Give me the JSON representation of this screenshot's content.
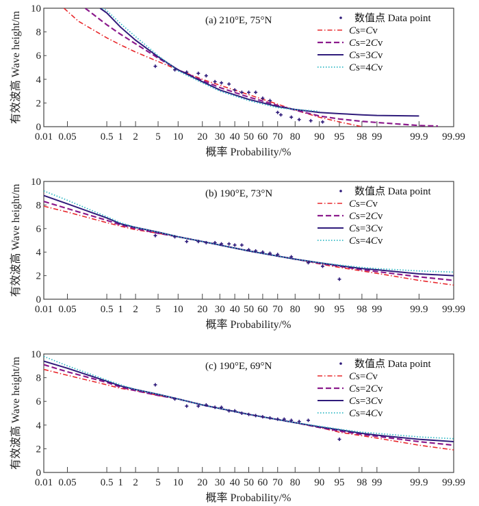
{
  "chart_data": [
    {
      "type": "line",
      "title": "(a) 210°E, 75°N",
      "xlabel": "概率 Probability/%",
      "ylabel": "有效波高 Wave height/m",
      "xscale": "normal-probability",
      "x_ticks": [
        0.01,
        0.05,
        0.5,
        1,
        2,
        5,
        10,
        20,
        30,
        40,
        50,
        60,
        70,
        80,
        90,
        95,
        98,
        99,
        99.9,
        99.99
      ],
      "x_tick_labels": [
        "0.01",
        "0.05",
        "0.5",
        "1",
        "2",
        "5",
        "10",
        "20",
        "30",
        "40",
        "50",
        "60",
        "70",
        "80",
        "90",
        "95",
        "98",
        "99",
        "99.9",
        "99.99"
      ],
      "y_ticks": [
        0,
        2,
        4,
        6,
        8,
        10
      ],
      "ylim": [
        0,
        10
      ],
      "xlim": [
        0.01,
        99.99
      ],
      "legend_position": "top-right",
      "legend": [
        "数值点 Data point",
        "Cs=Cv",
        "Cs=2Cv",
        "Cs=3Cv",
        "Cs=4Cv"
      ],
      "points": {
        "name": "数值点 Data point",
        "x": [
          4.5,
          9,
          13,
          18,
          22,
          27,
          31,
          36,
          40,
          45,
          50,
          55,
          60,
          65,
          70,
          72,
          78,
          82,
          87,
          91
        ],
        "y": [
          5.1,
          4.8,
          4.6,
          4.5,
          4.3,
          3.8,
          3.7,
          3.6,
          3.1,
          2.9,
          2.9,
          2.9,
          2.4,
          2.2,
          1.2,
          1.0,
          0.8,
          0.6,
          0.5,
          0.4
        ]
      },
      "series": [
        {
          "name": "Cs=Cv",
          "style": "dash-dot",
          "color": "#e8262a",
          "x": [
            0.04,
            0.1,
            0.5,
            1,
            2,
            5,
            10,
            20,
            30,
            50,
            70,
            80,
            90,
            95,
            98
          ],
          "y": [
            10,
            8.9,
            7.5,
            6.9,
            6.3,
            5.5,
            4.8,
            4.0,
            3.5,
            2.7,
            1.9,
            1.4,
            0.8,
            0.4,
            0
          ]
        },
        {
          "name": "Cs=2Cv",
          "style": "dashed",
          "color": "#8b1a8c",
          "x": [
            0.15,
            0.5,
            1,
            2,
            5,
            10,
            20,
            30,
            50,
            70,
            80,
            90,
            95,
            98,
            99,
            99.9,
            99.97
          ],
          "y": [
            10,
            8.6,
            7.8,
            7.0,
            5.8,
            4.8,
            3.9,
            3.3,
            2.5,
            1.8,
            1.4,
            0.9,
            0.65,
            0.45,
            0.35,
            0.1,
            0.05
          ]
        },
        {
          "name": "Cs=3Cv",
          "style": "solid",
          "color": "#2e1a7a",
          "x": [
            0.35,
            0.5,
            1,
            2,
            5,
            10,
            20,
            30,
            50,
            70,
            80,
            90,
            95,
            98,
            99,
            99.9
          ],
          "y": [
            10,
            9.6,
            8.4,
            7.3,
            5.9,
            4.8,
            3.8,
            3.1,
            2.3,
            1.7,
            1.45,
            1.2,
            1.1,
            1.0,
            0.95,
            0.9
          ]
        },
        {
          "name": "Cs=4Cv",
          "style": "dotted",
          "color": "#2fb8c4",
          "x": [
            0.4,
            0.5,
            1,
            2,
            5,
            10,
            20,
            30,
            50,
            70,
            80,
            90
          ],
          "y": [
            10,
            9.8,
            8.7,
            7.6,
            6.0,
            4.7,
            3.7,
            3.0,
            2.2,
            1.6,
            1.45,
            1.3
          ]
        }
      ]
    },
    {
      "type": "line",
      "title": "(b) 190°E, 73°N",
      "xlabel": "概率 Probability/%",
      "ylabel": "有效波高 Wave height/m",
      "xscale": "normal-probability",
      "x_ticks": [
        0.01,
        0.05,
        0.5,
        1,
        2,
        5,
        10,
        20,
        30,
        40,
        50,
        60,
        70,
        80,
        90,
        95,
        98,
        99,
        99.9,
        99.99
      ],
      "x_tick_labels": [
        "0.01",
        "0.05",
        "0.5",
        "1",
        "2",
        "5",
        "10",
        "20",
        "30",
        "40",
        "50",
        "60",
        "70",
        "80",
        "90",
        "95",
        "98",
        "99",
        "99.9",
        "99.99"
      ],
      "y_ticks": [
        0,
        2,
        4,
        6,
        8,
        10
      ],
      "ylim": [
        0,
        10
      ],
      "xlim": [
        0.01,
        99.99
      ],
      "legend_position": "top-right",
      "legend": [
        "数值点 Data point",
        "Cs=Cv",
        "Cs=2Cv",
        "Cs=3Cv",
        "Cs=4Cv"
      ],
      "points": {
        "name": "数值点 Data point",
        "x": [
          4.5,
          9,
          13,
          18,
          22,
          27,
          31,
          36,
          40,
          45,
          50,
          55,
          60,
          65,
          70,
          78,
          86,
          91,
          95
        ],
        "y": [
          5.4,
          5.3,
          4.9,
          4.9,
          4.8,
          4.8,
          4.7,
          4.7,
          4.6,
          4.6,
          4.2,
          4.1,
          4.0,
          3.9,
          3.8,
          3.6,
          3.1,
          2.8,
          1.7
        ]
      },
      "series": [
        {
          "name": "Cs=Cv",
          "style": "dash-dot",
          "color": "#e8262a",
          "x": [
            0.01,
            0.05,
            0.5,
            1,
            2,
            5,
            10,
            20,
            50,
            80,
            90,
            95,
            98,
            99,
            99.9,
            99.99
          ],
          "y": [
            7.9,
            7.4,
            6.5,
            6.2,
            5.9,
            5.6,
            5.3,
            4.9,
            4.1,
            3.4,
            3.0,
            2.7,
            2.4,
            2.2,
            1.6,
            1.2
          ]
        },
        {
          "name": "Cs=2Cv",
          "style": "dashed",
          "color": "#8b1a8c",
          "x": [
            0.01,
            0.05,
            0.5,
            1,
            2,
            5,
            10,
            20,
            50,
            80,
            90,
            95,
            98,
            99,
            99.9,
            99.99
          ],
          "y": [
            8.3,
            7.7,
            6.7,
            6.3,
            6.0,
            5.6,
            5.3,
            4.9,
            4.1,
            3.4,
            3.05,
            2.8,
            2.5,
            2.35,
            1.9,
            1.6
          ]
        },
        {
          "name": "Cs=3Cv",
          "style": "solid",
          "color": "#2e1a7a",
          "x": [
            0.01,
            0.05,
            0.5,
            1,
            2,
            5,
            10,
            20,
            50,
            80,
            90,
            95,
            98,
            99,
            99.9,
            99.99
          ],
          "y": [
            8.8,
            8.1,
            6.9,
            6.4,
            6.1,
            5.7,
            5.3,
            4.9,
            4.1,
            3.4,
            3.1,
            2.85,
            2.6,
            2.5,
            2.15,
            2.0
          ]
        },
        {
          "name": "Cs=4Cv",
          "style": "dotted",
          "color": "#2fb8c4",
          "x": [
            0.01,
            0.05,
            0.5,
            1,
            2,
            5,
            10,
            20,
            50,
            80,
            90,
            95,
            98,
            99,
            99.9,
            99.99
          ],
          "y": [
            9.2,
            8.4,
            7.0,
            6.5,
            6.1,
            5.7,
            5.3,
            4.9,
            4.1,
            3.4,
            3.1,
            2.9,
            2.7,
            2.6,
            2.4,
            2.3
          ]
        }
      ]
    },
    {
      "type": "line",
      "title": "(c) 190°E, 69°N",
      "xlabel": "概率 Probability/%",
      "ylabel": "有效波高 Wave height/m",
      "xscale": "normal-probability",
      "x_ticks": [
        0.01,
        0.05,
        0.5,
        1,
        2,
        5,
        10,
        20,
        30,
        40,
        50,
        60,
        70,
        80,
        90,
        95,
        98,
        99,
        99.9,
        99.99
      ],
      "x_tick_labels": [
        "0.01",
        "0.05",
        "0.5",
        "1",
        "2",
        "5",
        "10",
        "20",
        "30",
        "40",
        "50",
        "60",
        "70",
        "80",
        "90",
        "95",
        "98",
        "99",
        "99.9",
        "99.99"
      ],
      "y_ticks": [
        0,
        2,
        4,
        6,
        8,
        10
      ],
      "ylim": [
        0,
        10
      ],
      "xlim": [
        0.01,
        99.99
      ],
      "legend_position": "top-right",
      "legend": [
        "数值点 Data point",
        "Cs=Cv",
        "Cs=2Cv",
        "Cs=3Cv",
        "Cs=4Cv"
      ],
      "points": {
        "name": "数值点 Data point",
        "x": [
          4.5,
          9,
          13,
          18,
          22,
          27,
          31,
          36,
          40,
          45,
          50,
          55,
          60,
          65,
          70,
          74,
          78,
          82,
          86,
          95
        ],
        "y": [
          7.4,
          6.2,
          5.6,
          5.6,
          5.7,
          5.5,
          5.5,
          5.2,
          5.2,
          5.0,
          4.9,
          4.8,
          4.7,
          4.6,
          4.5,
          4.5,
          4.4,
          4.3,
          4.4,
          2.8
        ]
      },
      "series": [
        {
          "name": "Cs=Cv",
          "style": "dash-dot",
          "color": "#e8262a",
          "x": [
            0.01,
            0.05,
            0.5,
            1,
            2,
            5,
            10,
            20,
            50,
            80,
            90,
            95,
            98,
            99,
            99.9,
            99.99
          ],
          "y": [
            8.7,
            8.2,
            7.4,
            7.1,
            6.9,
            6.5,
            6.2,
            5.7,
            4.9,
            4.2,
            3.8,
            3.4,
            3.1,
            2.9,
            2.3,
            1.9
          ]
        },
        {
          "name": "Cs=2Cv",
          "style": "dashed",
          "color": "#8b1a8c",
          "x": [
            0.01,
            0.05,
            0.5,
            1,
            2,
            5,
            10,
            20,
            50,
            80,
            90,
            95,
            98,
            99,
            99.9,
            99.99
          ],
          "y": [
            9.1,
            8.5,
            7.6,
            7.2,
            6.9,
            6.5,
            6.2,
            5.7,
            4.9,
            4.2,
            3.8,
            3.5,
            3.2,
            3.05,
            2.6,
            2.3
          ]
        },
        {
          "name": "Cs=3Cv",
          "style": "solid",
          "color": "#2e1a7a",
          "x": [
            0.01,
            0.05,
            0.5,
            1,
            2,
            5,
            10,
            20,
            50,
            80,
            90,
            95,
            98,
            99,
            99.9,
            99.99
          ],
          "y": [
            9.4,
            8.8,
            7.7,
            7.3,
            7.0,
            6.6,
            6.2,
            5.7,
            4.9,
            4.2,
            3.85,
            3.6,
            3.3,
            3.15,
            2.8,
            2.6
          ]
        },
        {
          "name": "Cs=4Cv",
          "style": "dotted",
          "color": "#2fb8c4",
          "x": [
            0.01,
            0.05,
            0.5,
            1,
            2,
            5,
            10,
            20,
            50,
            80,
            90,
            95,
            98,
            99,
            99.9,
            99.99
          ],
          "y": [
            9.8,
            9.0,
            7.8,
            7.4,
            7.0,
            6.6,
            6.2,
            5.7,
            4.9,
            4.2,
            3.9,
            3.65,
            3.4,
            3.3,
            3.0,
            2.85
          ]
        }
      ]
    }
  ],
  "colors": {
    "points": "#2e1a7a",
    "axis": "#333333"
  }
}
